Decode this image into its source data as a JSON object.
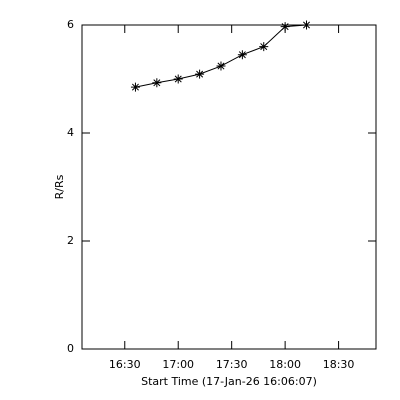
{
  "chart_data": {
    "type": "line",
    "y_label": "R/Rs",
    "x_label": "Start Time (17-Jan-26 16:06:07)",
    "x": [
      "16:36",
      "16:48",
      "17:00",
      "17:12",
      "17:24",
      "17:36",
      "17:48",
      "18:00",
      "18:12"
    ],
    "series": [
      {
        "color": "#000000",
        "marker": "asterisk",
        "values": [
          4.85,
          4.93,
          5.0,
          5.09,
          5.24,
          5.45,
          5.6,
          5.97,
          6.0
        ]
      }
    ],
    "xlim": [
      "16:06",
      "18:51"
    ],
    "xticks": [
      "16:30",
      "17:00",
      "17:30",
      "18:00",
      "18:30"
    ],
    "ylim": [
      0,
      6
    ],
    "yticks": [
      0,
      2,
      4,
      6
    ]
  }
}
